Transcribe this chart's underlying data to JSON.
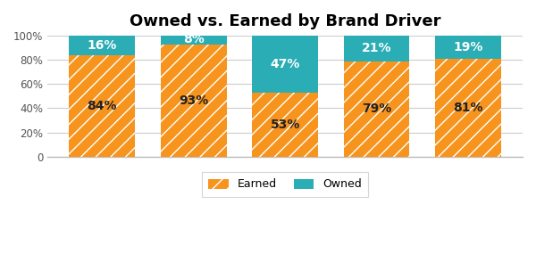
{
  "title": "Owned vs. Earned by Brand Driver",
  "categories": [
    "",
    "",
    "",
    "",
    ""
  ],
  "earned_values": [
    84,
    93,
    53,
    79,
    81
  ],
  "owned_values": [
    16,
    8,
    47,
    21,
    19
  ],
  "earned_color": "#F7941D",
  "owned_color": "#2AADB5",
  "earned_label": "Earned",
  "owned_label": "Owned",
  "ylim": [
    0,
    100
  ],
  "yticks": [
    0,
    20,
    40,
    60,
    80,
    100
  ],
  "ytick_labels": [
    "0",
    "20%",
    "40%",
    "60%",
    "80%",
    "100%"
  ],
  "background_color": "#ffffff",
  "title_fontsize": 13,
  "bar_width": 0.72,
  "hatch_pattern": "//"
}
